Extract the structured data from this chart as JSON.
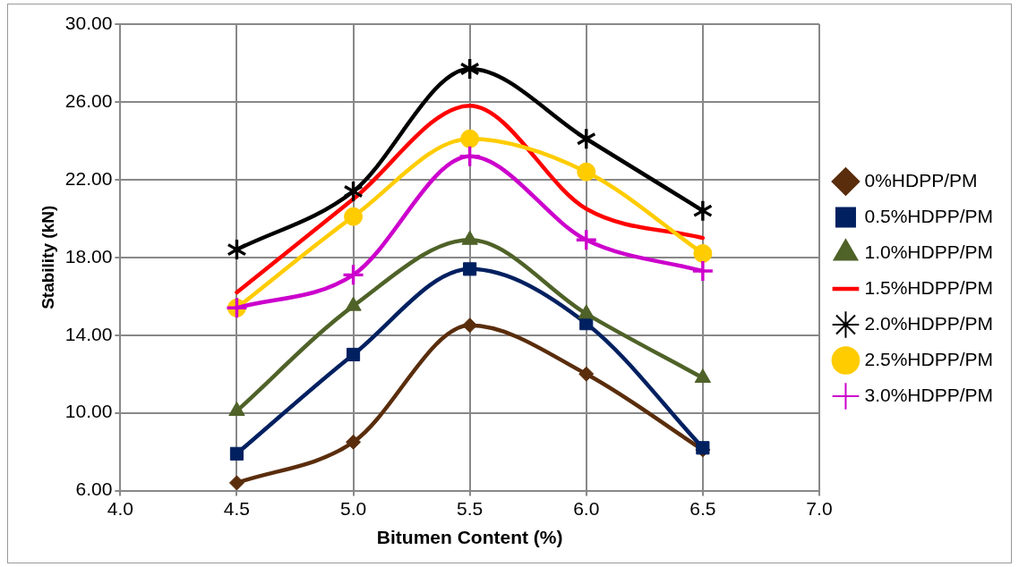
{
  "chart_data": {
    "type": "line",
    "xlabel": "Bitumen Content (%)",
    "ylabel": "Stability (kN)",
    "x": [
      4.5,
      5.0,
      5.5,
      6.0,
      6.5
    ],
    "xlim": [
      4,
      7
    ],
    "xticks": [
      {
        "value": 4,
        "label": "4.0"
      },
      {
        "value": 4.5,
        "label": "4.5"
      },
      {
        "value": 5,
        "label": "5.0"
      },
      {
        "value": 5.5,
        "label": "5.5"
      },
      {
        "value": 6,
        "label": "6.0"
      },
      {
        "value": 6.5,
        "label": "6.5"
      },
      {
        "value": 7,
        "label": "7.0"
      }
    ],
    "ylim": [
      6,
      30
    ],
    "yticks": [
      {
        "value": 6,
        "label": "6.00"
      },
      {
        "value": 10,
        "label": "10.00"
      },
      {
        "value": 14,
        "label": "14.00"
      },
      {
        "value": 18,
        "label": "18.00"
      },
      {
        "value": 22,
        "label": "22.00"
      },
      {
        "value": 26,
        "label": "26.00"
      },
      {
        "value": 30,
        "label": "30.00"
      }
    ],
    "grid": true,
    "legend": "right",
    "series": [
      {
        "name": "0%HDPP/PM",
        "color": "#5a2d0c",
        "marker": "diamond",
        "values": [
          6.4,
          8.5,
          14.5,
          12.0,
          8.1
        ]
      },
      {
        "name": "0.5%HDPP/PM",
        "color": "#002060",
        "marker": "square",
        "values": [
          7.9,
          13.0,
          17.4,
          14.6,
          8.2
        ]
      },
      {
        "name": "1.0%HDPP/PM",
        "color": "#4f6228",
        "marker": "triangle",
        "values": [
          10.1,
          15.5,
          18.9,
          15.1,
          11.8
        ]
      },
      {
        "name": "1.5%HDPP/PM",
        "color": "#ff0000",
        "marker": "none",
        "values": [
          16.2,
          21.0,
          25.8,
          20.5,
          19.0
        ]
      },
      {
        "name": "2.0%HDPP/PM",
        "color": "#000000",
        "marker": "star",
        "values": [
          18.4,
          21.4,
          27.7,
          24.1,
          20.4
        ]
      },
      {
        "name": "2.5%HDPP/PM",
        "color": "#ffcc00",
        "marker": "circle",
        "values": [
          15.4,
          20.1,
          24.1,
          22.4,
          18.2
        ]
      },
      {
        "name": "3.0%HDPP/PM",
        "color": "#cc00cc",
        "marker": "cross",
        "values": [
          15.4,
          17.1,
          23.2,
          18.9,
          17.3
        ]
      }
    ]
  }
}
